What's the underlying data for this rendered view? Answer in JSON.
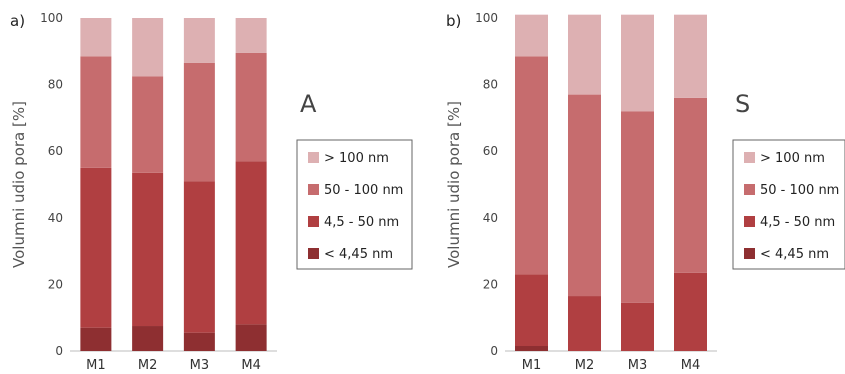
{
  "chart_data": [
    {
      "type": "bar",
      "stacked": true,
      "panel_label": "a)",
      "chart_letter": "A",
      "ylabel": "Volumni udio pora [%]",
      "ylim": [
        0,
        100
      ],
      "yticks": [
        0,
        20,
        40,
        60,
        80,
        100
      ],
      "categories": [
        "M1",
        "M2",
        "M3",
        "M4"
      ],
      "legend_order": [
        "> 100 nm",
        "50 - 100 nm",
        "4,5 - 50 nm",
        "< 4,45 nm"
      ],
      "series": [
        {
          "name": "< 4,45 nm",
          "color": "#8e2f31",
          "values": [
            7,
            7.5,
            5.5,
            8
          ]
        },
        {
          "name": "4,5 - 50 nm",
          "color": "#b03f41",
          "values": [
            48,
            46,
            45.5,
            49
          ]
        },
        {
          "name": "50 - 100 nm",
          "color": "#c66c6e",
          "values": [
            33.5,
            29,
            35.5,
            32.5
          ]
        },
        {
          "name": "> 100 nm",
          "color": "#ddb0b2",
          "values": [
            11.5,
            17.5,
            13.5,
            10.5
          ]
        }
      ]
    },
    {
      "type": "bar",
      "stacked": true,
      "panel_label": "b)",
      "chart_letter": "S",
      "ylabel": "Volumni udio pora [%]",
      "ylim": [
        0,
        100
      ],
      "yticks": [
        0,
        20,
        40,
        60,
        80,
        100
      ],
      "categories": [
        "M1",
        "M2",
        "M3",
        "M4"
      ],
      "legend_order": [
        "> 100 nm",
        "50 - 100 nm",
        "4,5 - 50 nm",
        "< 4,45 nm"
      ],
      "series": [
        {
          "name": "< 4,45 nm",
          "color": "#8e2f31",
          "values": [
            1.5,
            0,
            0,
            0
          ]
        },
        {
          "name": "4,5 - 50 nm",
          "color": "#b03f41",
          "values": [
            21.5,
            16.5,
            14.5,
            23.5
          ]
        },
        {
          "name": "50 - 100 nm",
          "color": "#c66c6e",
          "values": [
            65.5,
            60.5,
            57.5,
            52.5
          ]
        },
        {
          "name": "> 100 nm",
          "color": "#ddb0b2",
          "values": [
            12.5,
            24,
            29,
            25
          ]
        }
      ]
    }
  ]
}
